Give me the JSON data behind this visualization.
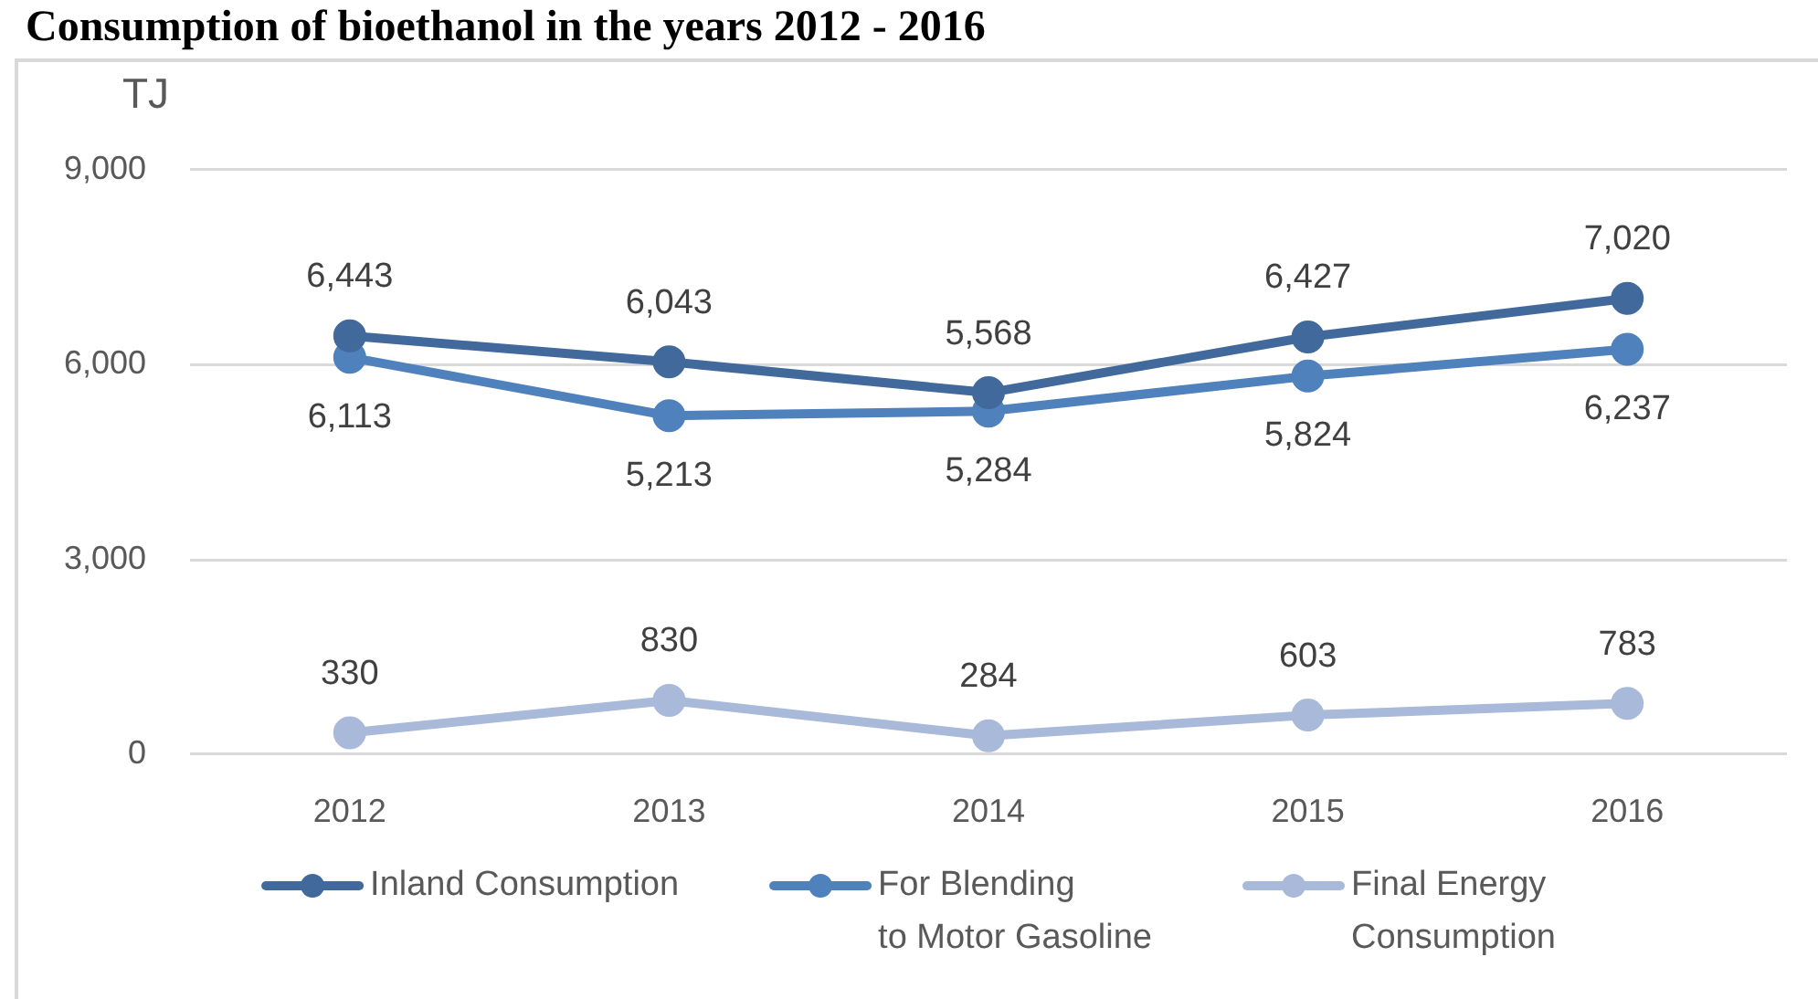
{
  "chart_data": {
    "type": "line",
    "title": "Consumption of bioethanol in the years 2012 - 2016",
    "ylabel": "TJ",
    "categories": [
      "2012",
      "2013",
      "2014",
      "2015",
      "2016"
    ],
    "series": [
      {
        "name": "Inland Consumption",
        "color": "#41699c",
        "values": [
          6443,
          6043,
          5568,
          6427,
          7020
        ],
        "value_labels": [
          "6,443",
          "6,043",
          "5,568",
          "6,427",
          "7,020"
        ]
      },
      {
        "name": "For Blending to Motor Gasoline",
        "color": "#4f81bd",
        "values": [
          6113,
          5213,
          5284,
          5824,
          6237
        ],
        "value_labels": [
          "6,113",
          "5,213",
          "5,284",
          "5,824",
          "6,237"
        ]
      },
      {
        "name": "Final Energy Consumption",
        "color": "#a9b9d9",
        "values": [
          330,
          830,
          284,
          603,
          783
        ],
        "value_labels": [
          "330",
          "830",
          "284",
          "603",
          "783"
        ]
      }
    ],
    "ylim": [
      0,
      9000
    ],
    "yticks": [
      0,
      {
        "value": 3000,
        "label": "3,000"
      },
      {
        "value": 6000,
        "label": "6,000"
      },
      {
        "value": 9000,
        "label": "9,000"
      }
    ],
    "grid": "y",
    "legend": "bottom",
    "marker": "circle"
  }
}
